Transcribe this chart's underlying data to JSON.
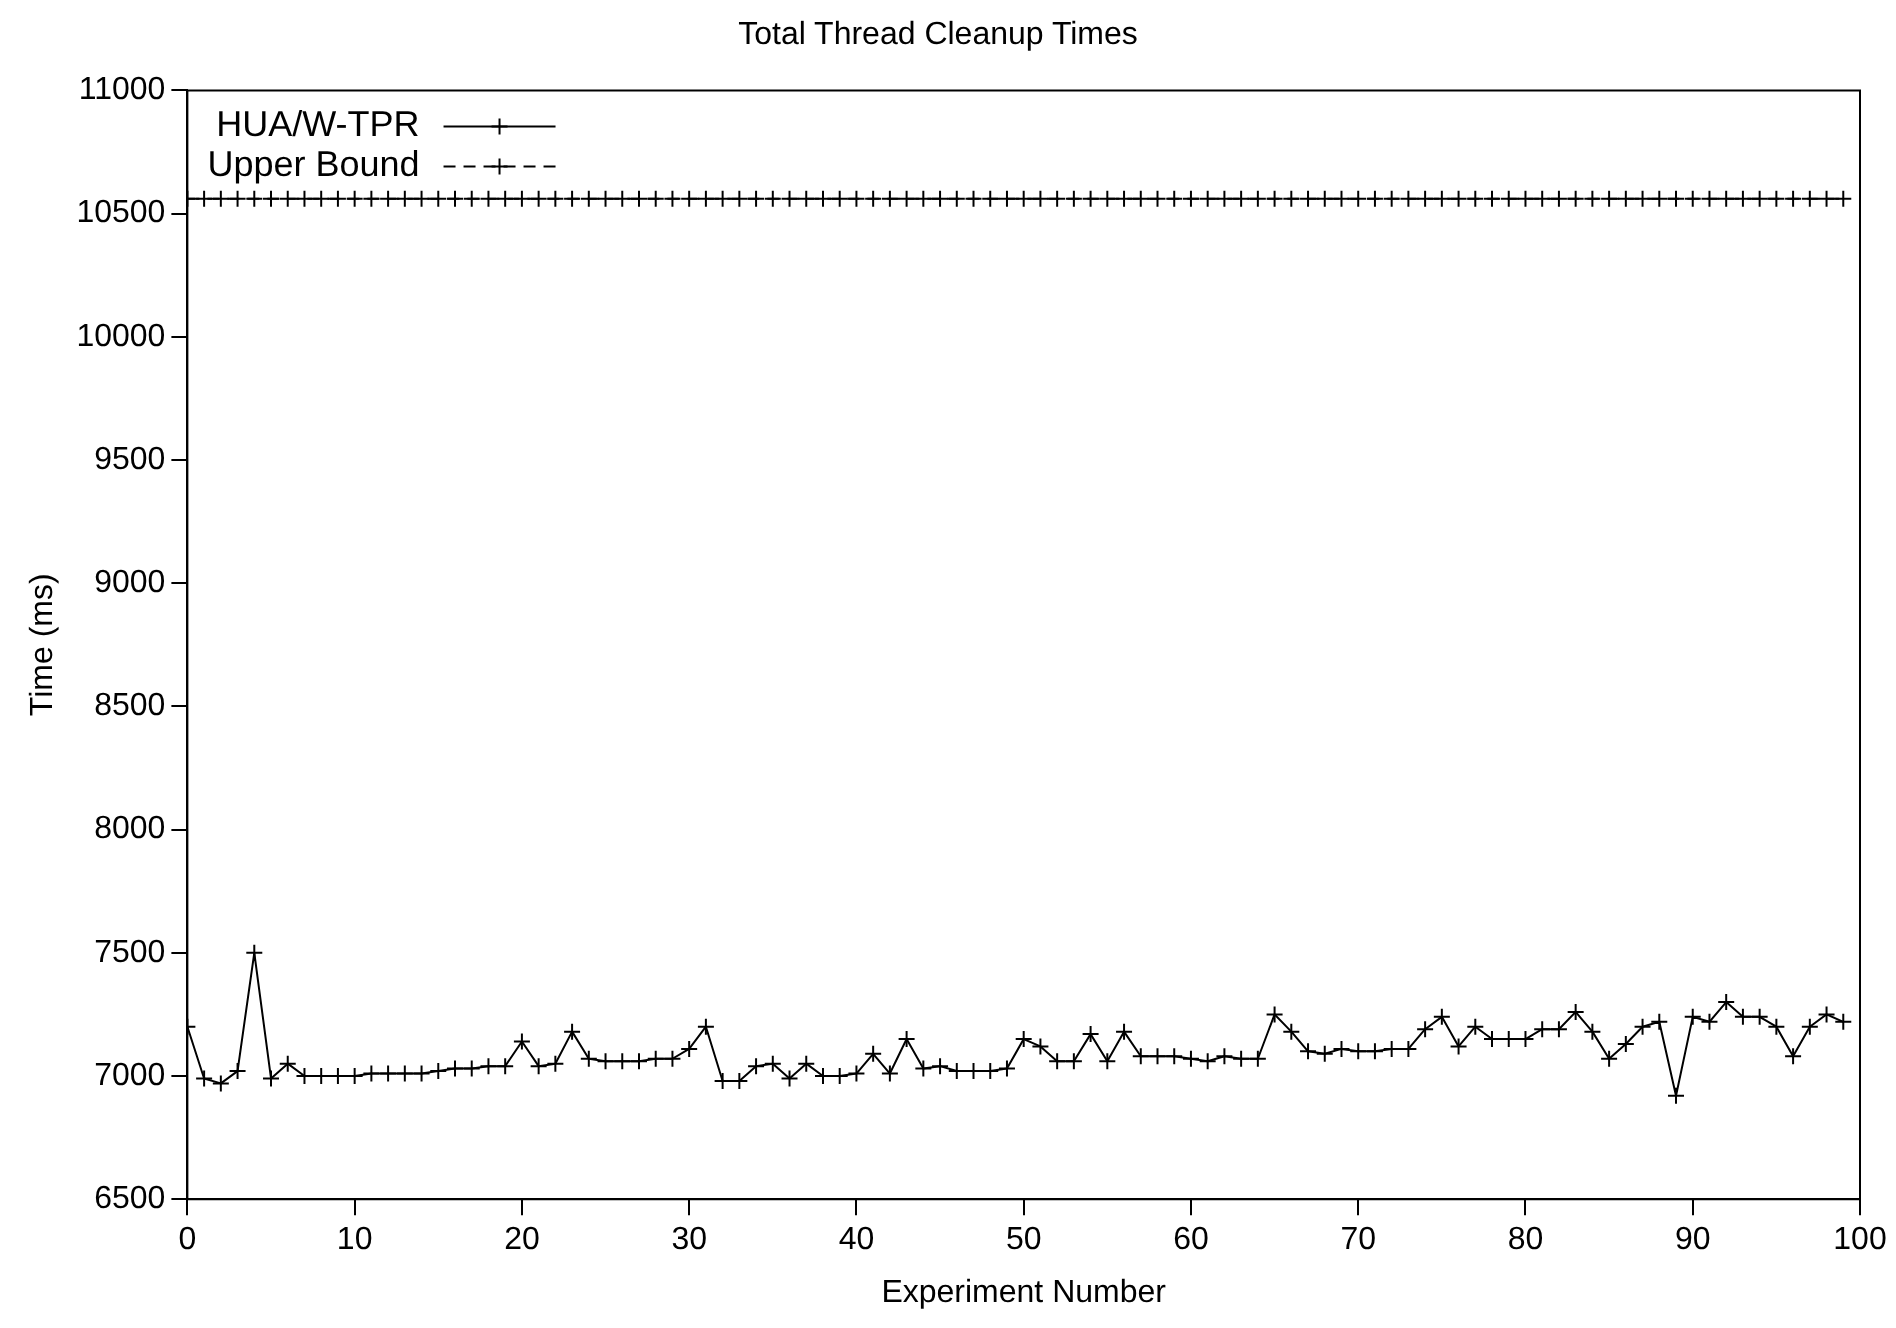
{
  "chart_data": {
    "type": "line",
    "title": "Total Thread Cleanup Times",
    "xlabel": "Experiment Number",
    "ylabel": "Time (ms)",
    "x": [
      0,
      1,
      2,
      3,
      4,
      5,
      6,
      7,
      8,
      9,
      10,
      11,
      12,
      13,
      14,
      15,
      16,
      17,
      18,
      19,
      20,
      21,
      22,
      23,
      24,
      25,
      26,
      27,
      28,
      29,
      30,
      31,
      32,
      33,
      34,
      35,
      36,
      37,
      38,
      39,
      40,
      41,
      42,
      43,
      44,
      45,
      46,
      47,
      48,
      49,
      50,
      51,
      52,
      53,
      54,
      55,
      56,
      57,
      58,
      59,
      60,
      61,
      62,
      63,
      64,
      65,
      66,
      67,
      68,
      69,
      70,
      71,
      72,
      73,
      74,
      75,
      76,
      77,
      78,
      79,
      80,
      81,
      82,
      83,
      84,
      85,
      86,
      87,
      88,
      89,
      90,
      91,
      92,
      93,
      94,
      95,
      96,
      97,
      98,
      99
    ],
    "series": [
      {
        "name": "HUA/W-TPR",
        "color": "#000000",
        "marker": "cross",
        "line_style": "solid",
        "values": [
          7200,
          6990,
          6970,
          7020,
          7500,
          6990,
          7050,
          7000,
          7000,
          7000,
          7000,
          7010,
          7010,
          7010,
          7010,
          7020,
          7030,
          7030,
          7040,
          7040,
          7140,
          7040,
          7050,
          7180,
          7070,
          7060,
          7060,
          7060,
          7070,
          7070,
          7110,
          7200,
          6980,
          6980,
          7040,
          7050,
          6990,
          7050,
          7000,
          7000,
          7010,
          7090,
          7010,
          7150,
          7030,
          7040,
          7020,
          7020,
          7020,
          7030,
          7150,
          7120,
          7060,
          7060,
          7170,
          7060,
          7180,
          7080,
          7080,
          7080,
          7070,
          7060,
          7080,
          7070,
          7070,
          7250,
          7180,
          7100,
          7090,
          7110,
          7100,
          7100,
          7110,
          7110,
          7190,
          7240,
          7120,
          7200,
          7150,
          7150,
          7150,
          7190,
          7190,
          7260,
          7180,
          7070,
          7130,
          7200,
          7220,
          6920,
          7240,
          7220,
          7300,
          7240,
          7240,
          7200,
          7080,
          7200,
          7250,
          7220
        ]
      },
      {
        "name": "Upper Bound",
        "color": "#000000",
        "marker": "cross",
        "line_style": "dashed",
        "values": [
          10560,
          10560,
          10560,
          10560,
          10560,
          10560,
          10560,
          10560,
          10560,
          10560,
          10560,
          10560,
          10560,
          10560,
          10560,
          10560,
          10560,
          10560,
          10560,
          10560,
          10560,
          10560,
          10560,
          10560,
          10560,
          10560,
          10560,
          10560,
          10560,
          10560,
          10560,
          10560,
          10560,
          10560,
          10560,
          10560,
          10560,
          10560,
          10560,
          10560,
          10560,
          10560,
          10560,
          10560,
          10560,
          10560,
          10560,
          10560,
          10560,
          10560,
          10560,
          10560,
          10560,
          10560,
          10560,
          10560,
          10560,
          10560,
          10560,
          10560,
          10560,
          10560,
          10560,
          10560,
          10560,
          10560,
          10560,
          10560,
          10560,
          10560,
          10560,
          10560,
          10560,
          10560,
          10560,
          10560,
          10560,
          10560,
          10560,
          10560,
          10560,
          10560,
          10560,
          10560,
          10560,
          10560,
          10560,
          10560,
          10560,
          10560,
          10560,
          10560,
          10560,
          10560,
          10560,
          10560,
          10560,
          10560,
          10560,
          10560
        ]
      }
    ],
    "xlim": [
      0,
      100
    ],
    "xticks": [
      0,
      10,
      20,
      30,
      40,
      50,
      60,
      70,
      80,
      90,
      100
    ],
    "ylim": [
      6500,
      11000
    ],
    "yticks": [
      6500,
      7000,
      7500,
      8000,
      8500,
      9000,
      9500,
      10000,
      10500,
      11000
    ],
    "grid": false,
    "legend": "top left"
  }
}
